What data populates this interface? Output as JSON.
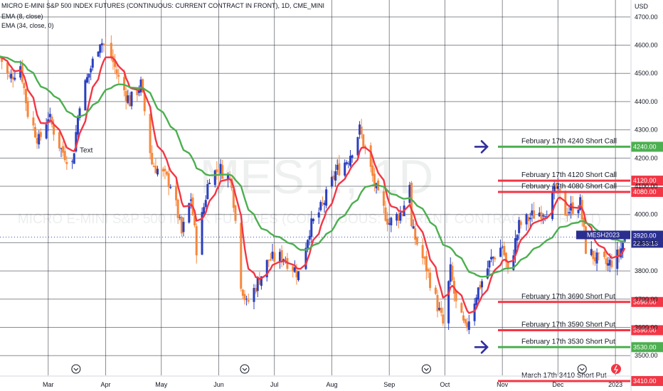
{
  "header": {
    "title": "MICRO E-MINI S&P 500 INDEX FUTURES (CONTINUOUS: CURRENT CONTRACT IN FRONT), 1D, CME_MINI",
    "ema_fast": "EMA (8, close)",
    "ema_slow": "EMA (34, close, 0)"
  },
  "watermark": {
    "symbol": "MES1!, 1D",
    "name": "MICRO E-MINI S&P 500 INDEX FUTURES (CONTINUOUS: CURRENT CONTRACT IN FRONT)"
  },
  "chart_data": {
    "type": "candlestick",
    "currency_label": "USD",
    "ylim": [
      3430,
      4760
    ],
    "y_ticks": [
      3500,
      3600,
      3700,
      3800,
      3900,
      4000,
      4100,
      4200,
      4300,
      4400,
      4500,
      4600,
      4700
    ],
    "y_tick_labels": [
      "3500.00",
      "3600.00",
      "3700.00",
      "3800.00",
      "3900.00",
      "4000.00",
      "4100.00",
      "4200.00",
      "4300.00",
      "4400.00",
      "4500.00",
      "4600.00",
      "4700.00"
    ],
    "x_ticks": [
      {
        "label": "Mar",
        "date": "2022-03-01"
      },
      {
        "label": "Apr",
        "date": "2022-04-01"
      },
      {
        "label": "May",
        "date": "2022-05-01"
      },
      {
        "label": "Jun",
        "date": "2022-06-01"
      },
      {
        "label": "Jul",
        "date": "2022-07-01"
      },
      {
        "label": "Aug",
        "date": "2022-08-01"
      },
      {
        "label": "Sep",
        "date": "2022-09-01"
      },
      {
        "label": "Oct",
        "date": "2022-10-01"
      },
      {
        "label": "Nov",
        "date": "2022-11-01"
      },
      {
        "label": "Dec",
        "date": "2022-12-01"
      },
      {
        "label": "2023",
        "date": "2023-01-01"
      }
    ],
    "xlim": [
      "2022-02-03",
      "2023-01-09"
    ],
    "close_path": [
      {
        "date": "2022-02-03",
        "close": 4560
      },
      {
        "date": "2022-02-08",
        "close": 4480
      },
      {
        "date": "2022-02-14",
        "close": 4530
      },
      {
        "date": "2022-02-18",
        "close": 4360
      },
      {
        "date": "2022-02-24",
        "close": 4260
      },
      {
        "date": "2022-03-01",
        "close": 4350
      },
      {
        "date": "2022-03-08",
        "close": 4230
      },
      {
        "date": "2022-03-14",
        "close": 4180
      },
      {
        "date": "2022-03-18",
        "close": 4400
      },
      {
        "date": "2022-03-24",
        "close": 4520
      },
      {
        "date": "2022-03-29",
        "close": 4620
      },
      {
        "date": "2022-04-04",
        "close": 4560
      },
      {
        "date": "2022-04-08",
        "close": 4480
      },
      {
        "date": "2022-04-14",
        "close": 4400
      },
      {
        "date": "2022-04-20",
        "close": 4460
      },
      {
        "date": "2022-04-26",
        "close": 4180
      },
      {
        "date": "2022-05-02",
        "close": 4140
      },
      {
        "date": "2022-05-06",
        "close": 4110
      },
      {
        "date": "2022-05-10",
        "close": 4000
      },
      {
        "date": "2022-05-12",
        "close": 3930
      },
      {
        "date": "2022-05-17",
        "close": 4060
      },
      {
        "date": "2022-05-20",
        "close": 3880
      },
      {
        "date": "2022-05-27",
        "close": 4140
      },
      {
        "date": "2022-06-02",
        "close": 4160
      },
      {
        "date": "2022-06-08",
        "close": 4120
      },
      {
        "date": "2022-06-13",
        "close": 3760
      },
      {
        "date": "2022-06-16",
        "close": 3680
      },
      {
        "date": "2022-06-22",
        "close": 3760
      },
      {
        "date": "2022-06-28",
        "close": 3840
      },
      {
        "date": "2022-07-06",
        "close": 3850
      },
      {
        "date": "2022-07-14",
        "close": 3790
      },
      {
        "date": "2022-07-20",
        "close": 3950
      },
      {
        "date": "2022-07-27",
        "close": 4030
      },
      {
        "date": "2022-08-03",
        "close": 4150
      },
      {
        "date": "2022-08-10",
        "close": 4200
      },
      {
        "date": "2022-08-16",
        "close": 4300
      },
      {
        "date": "2022-08-19",
        "close": 4230
      },
      {
        "date": "2022-08-26",
        "close": 4060
      },
      {
        "date": "2022-09-01",
        "close": 3970
      },
      {
        "date": "2022-09-08",
        "close": 4010
      },
      {
        "date": "2022-09-12",
        "close": 4120
      },
      {
        "date": "2022-09-13",
        "close": 3950
      },
      {
        "date": "2022-09-21",
        "close": 3810
      },
      {
        "date": "2022-09-30",
        "close": 3610
      },
      {
        "date": "2022-10-04",
        "close": 3800
      },
      {
        "date": "2022-10-07",
        "close": 3680
      },
      {
        "date": "2022-10-12",
        "close": 3590
      },
      {
        "date": "2022-10-18",
        "close": 3720
      },
      {
        "date": "2022-10-26",
        "close": 3840
      },
      {
        "date": "2022-11-01",
        "close": 3890
      },
      {
        "date": "2022-11-04",
        "close": 3790
      },
      {
        "date": "2022-11-10",
        "close": 3960
      },
      {
        "date": "2022-11-18",
        "close": 4000
      },
      {
        "date": "2022-11-25",
        "close": 4020
      },
      {
        "date": "2022-11-30",
        "close": 4090
      },
      {
        "date": "2022-12-05",
        "close": 4010
      },
      {
        "date": "2022-12-13",
        "close": 4040
      },
      {
        "date": "2022-12-16",
        "close": 3880
      },
      {
        "date": "2022-12-22",
        "close": 3840
      },
      {
        "date": "2022-12-28",
        "close": 3820
      },
      {
        "date": "2023-01-03",
        "close": 3860
      },
      {
        "date": "2023-01-06",
        "close": 3920
      }
    ],
    "last_price": {
      "symbol": "MESH2023",
      "price": "3920.00",
      "countdown": "22:33:13"
    },
    "levels": [
      {
        "label": "February 17th 4240 Short Call",
        "value": 4240,
        "price": "4240.00",
        "color": "#4caf50",
        "arrow": true
      },
      {
        "label": "February 17th 4120 Short Call",
        "value": 4120,
        "price": "4120.00",
        "color": "#f23645",
        "arrow": false
      },
      {
        "label": "February 17th 4080 Short Call",
        "value": 4080,
        "price": "4080.00",
        "color": "#f23645",
        "arrow": false
      },
      {
        "label": "February 17th 3690 Short Put",
        "value": 3690,
        "price": "3690.00",
        "color": "#f23645",
        "arrow": false
      },
      {
        "label": "February 17th 3590 Short Put",
        "value": 3590,
        "price": "3590.00",
        "color": "#f23645",
        "arrow": false
      },
      {
        "label": "February 17th 3530 Short Put",
        "value": 3530,
        "price": "3530.00",
        "color": "#4caf50",
        "arrow": true
      },
      {
        "label": "March 17th 3410 Short Put",
        "value": 3410,
        "price": "3410.00",
        "color": "#f23645",
        "arrow": false
      }
    ],
    "annotations": [
      {
        "text": "Text",
        "date": "2022-03-18",
        "price": 4220
      }
    ],
    "series": [
      {
        "name": "EMA (8, close)",
        "color": "#f23645"
      },
      {
        "name": "EMA (34, close, 0)",
        "color": "#4caf50"
      }
    ],
    "candle_colors": {
      "up": "#2a3fbf",
      "down": "#f6883d"
    },
    "grid": true,
    "event_markers": [
      "2022-03-16",
      "2022-06-15",
      "2022-09-21",
      "2022-12-14"
    ]
  }
}
